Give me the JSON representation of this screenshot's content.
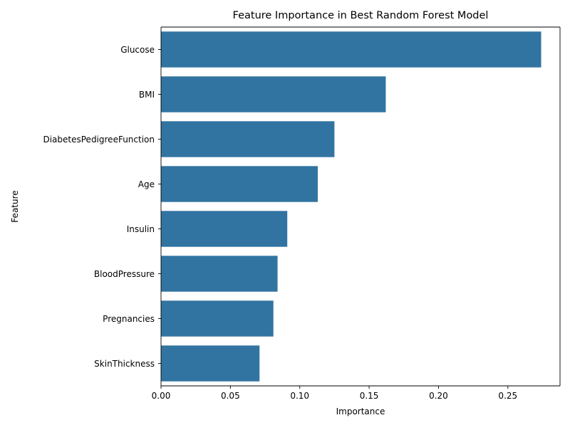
{
  "chart_data": {
    "type": "bar",
    "orientation": "horizontal",
    "title": "Feature Importance in Best Random Forest Model",
    "xlabel": "Importance",
    "ylabel": "Feature",
    "categories": [
      "Glucose",
      "BMI",
      "DiabetesPedigreeFunction",
      "Age",
      "Insulin",
      "BloodPressure",
      "Pregnancies",
      "SkinThickness"
    ],
    "values": [
      0.274,
      0.162,
      0.125,
      0.113,
      0.091,
      0.084,
      0.081,
      0.071
    ],
    "xlim": [
      0,
      0.2876
    ],
    "xticks": [
      0.0,
      0.05,
      0.1,
      0.15,
      0.2,
      0.25
    ],
    "xtick_labels": [
      "0.00",
      "0.05",
      "0.10",
      "0.15",
      "0.20",
      "0.25"
    ],
    "grid": false,
    "legend": "none",
    "colors": {
      "bar": "#3274a1",
      "axis": "#000000",
      "background": "#ffffff"
    }
  }
}
